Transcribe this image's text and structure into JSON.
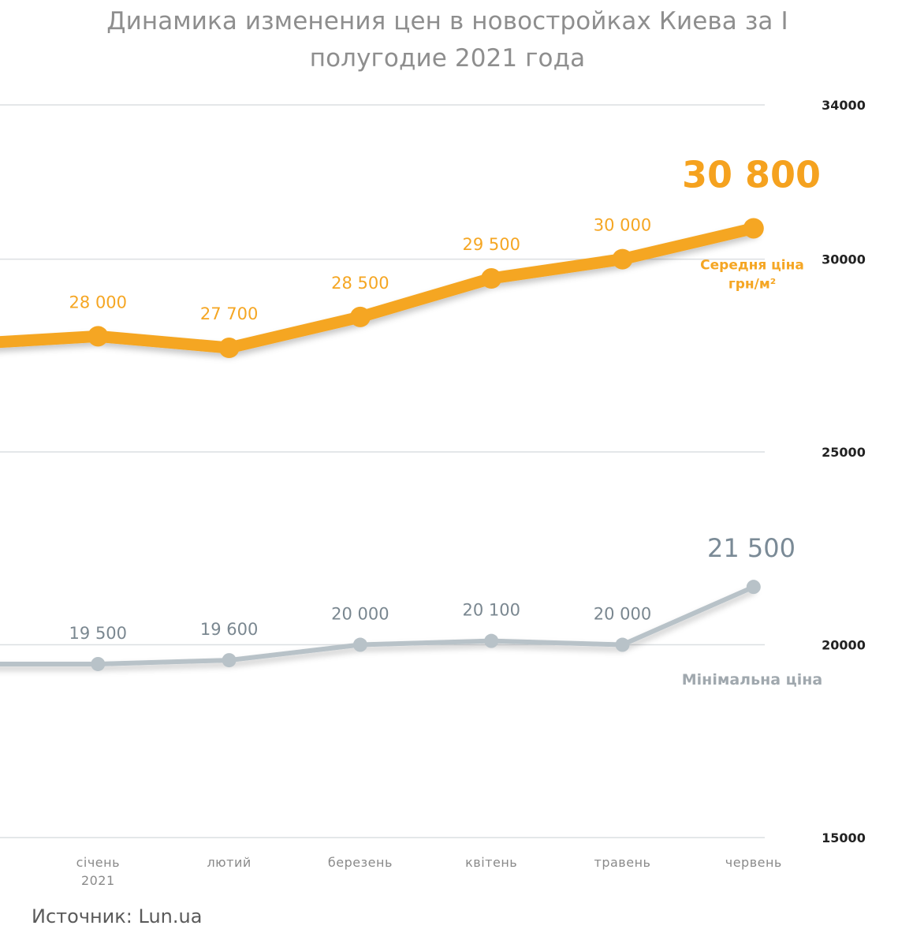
{
  "title": "Динамика изменения цен в новостройках Киева за I полугодие 2021 года",
  "source": "Источник: Lun.ua",
  "chart_data": {
    "type": "line",
    "categories": [
      "",
      "січень\n2021",
      "лютий",
      "березень",
      "квітень",
      "травень",
      "червень"
    ],
    "yticks": [
      15000,
      20000,
      25000,
      30000,
      34000
    ],
    "ylim": [
      15000,
      34000
    ],
    "y_axis_position": "right",
    "grid": true,
    "series": [
      {
        "name": "Середня ціна\nгрн/м²",
        "color": "#f5a623",
        "values": [
          27800,
          28000,
          27700,
          28500,
          29500,
          30000,
          30800
        ],
        "labels": [
          "",
          "28 000",
          "27 700",
          "28 500",
          "29 500",
          "30 000",
          "30 800"
        ]
      },
      {
        "name": "Мінімальна ціна",
        "color": "#b8c2c8",
        "values": [
          19500,
          19500,
          19600,
          20000,
          20100,
          20000,
          21500
        ],
        "labels": [
          "",
          "19 500",
          "19 600",
          "20 000",
          "20 100",
          "20 000",
          "21 500"
        ]
      }
    ]
  }
}
